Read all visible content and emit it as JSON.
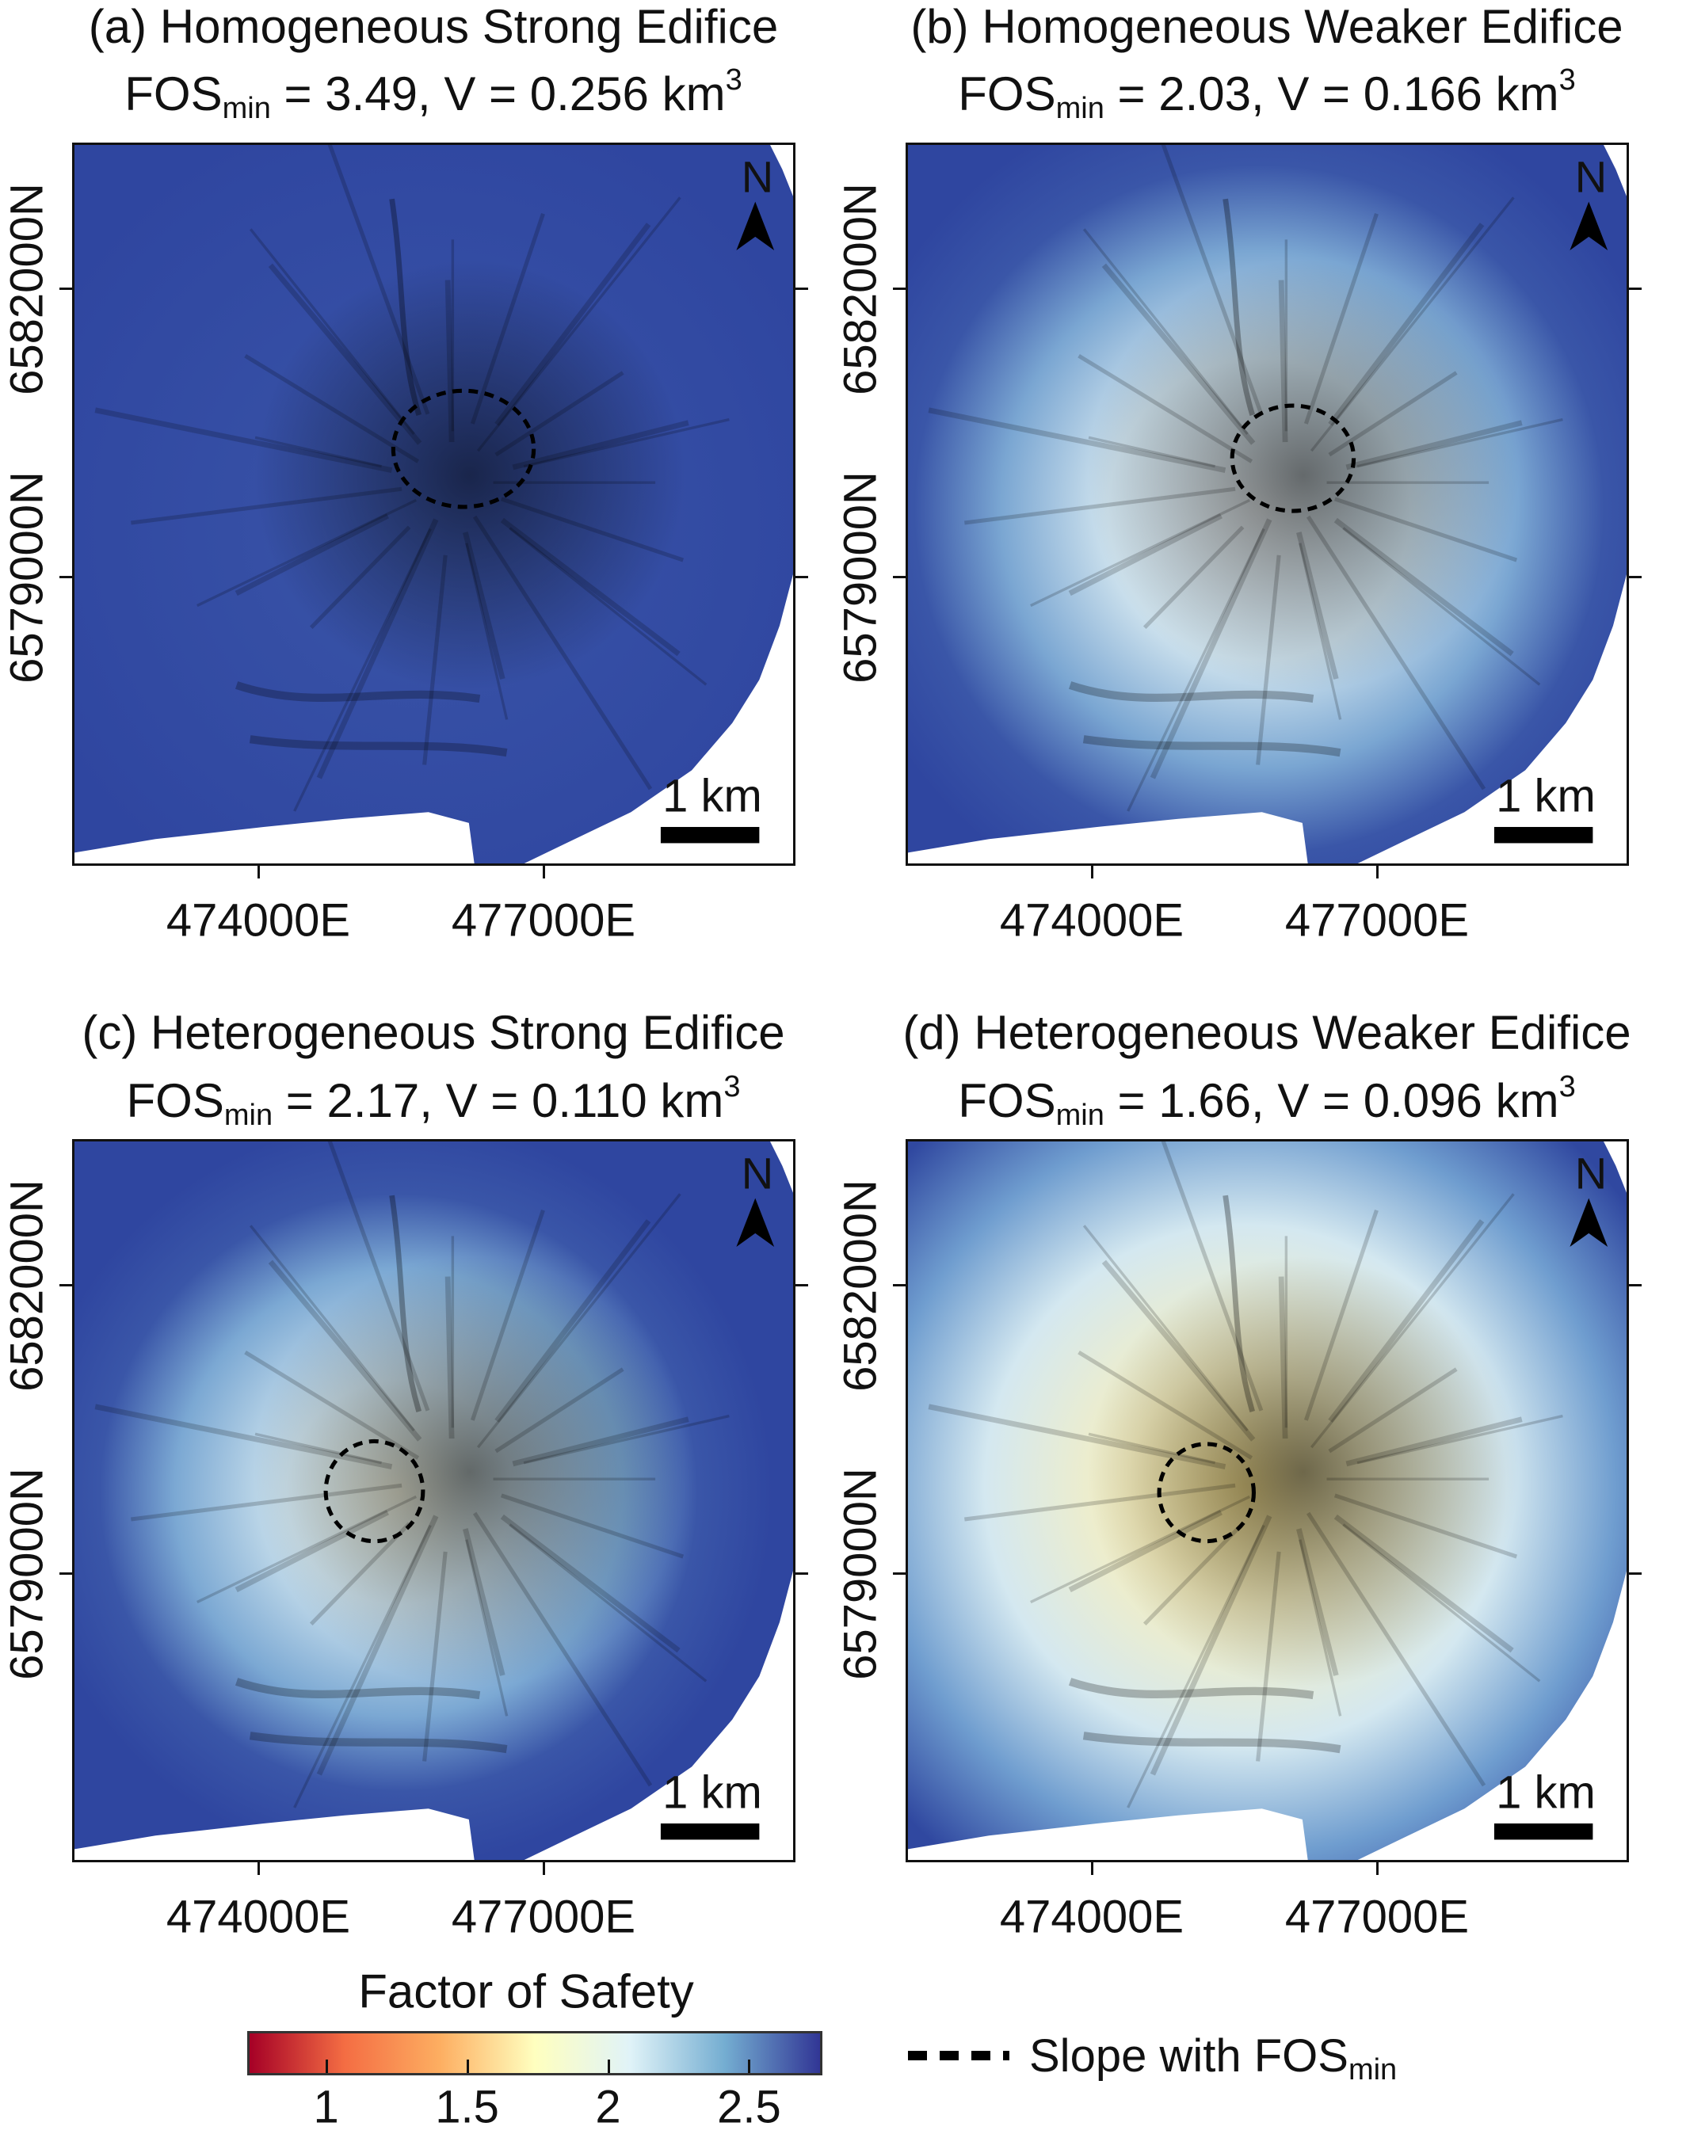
{
  "panels": [
    {
      "title": "(a) Homogeneous Strong Edifice",
      "fos_label": "FOS",
      "fos_sub": "min",
      "stats": " = 3.49, V = 0.256 km",
      "unit_sup": "3",
      "fos_min": 3.49,
      "volume_km3": 0.256,
      "field": "uniform-blue",
      "ellipse": "summit-east"
    },
    {
      "title": "(b) Homogeneous Weaker Edifice",
      "fos_label": "FOS",
      "fos_sub": "min",
      "stats": " = 2.03, V = 0.166 km",
      "unit_sup": "3",
      "fos_min": 2.03,
      "volume_km3": 0.166,
      "field": "light-center",
      "ellipse": "summit-east"
    },
    {
      "title": "(c) Heterogeneous Strong Edifice",
      "fos_label": "FOS",
      "fos_sub": "min",
      "stats": " = 2.17, V = 0.110 km",
      "unit_sup": "3",
      "fos_min": 2.17,
      "volume_km3": 0.11,
      "field": "light-center",
      "ellipse": "west-flank"
    },
    {
      "title": "(d) Heterogeneous Weaker Edifice",
      "fos_label": "FOS",
      "fos_sub": "min",
      "stats": " = 1.66, V = 0.096 km",
      "unit_sup": "3",
      "fos_min": 1.66,
      "volume_km3": 0.096,
      "field": "yellow-center",
      "ellipse": "west-flank"
    }
  ],
  "axes": {
    "y_ticks": [
      "6582000N",
      "6579000N"
    ],
    "x_ticks": [
      "474000E",
      "477000E"
    ]
  },
  "scale_bar": "1 km",
  "north_label": "N",
  "colorbar": {
    "title": "Factor of Safety",
    "ticks": [
      "1",
      "1.5",
      "2",
      "2.5"
    ],
    "tick_values": [
      1,
      1.5,
      2,
      2.5
    ],
    "range": [
      0.72,
      2.76
    ],
    "colormap": "RdYlBu",
    "colors": [
      "#a50026",
      "#f46d43",
      "#fdae61",
      "#ffffbf",
      "#e0f3f8",
      "#74add1",
      "#313695"
    ]
  },
  "legend": {
    "label": "Slope with ",
    "fos_label": "FOS",
    "fos_sub": "min",
    "line_style": "dashed",
    "color": "#000000"
  }
}
